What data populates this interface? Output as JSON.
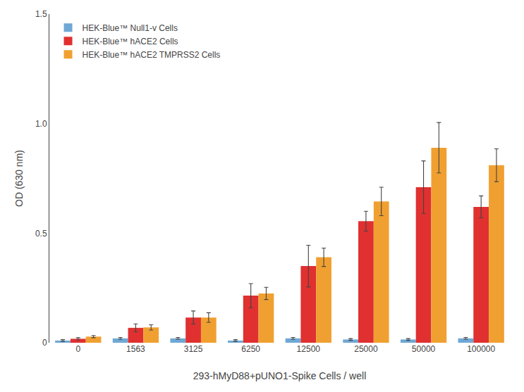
{
  "chart_data": {
    "type": "bar",
    "xlabel": "293-hMyD88+pUNO1-Spike Cells / well",
    "ylabel": "OD (630 nm)",
    "categories": [
      "0",
      "1563",
      "3125",
      "6250",
      "12500",
      "25000",
      "50000",
      "100000"
    ],
    "series": [
      {
        "name": "HEK-Blue™ Null1-v Cells",
        "color": "#6FA8D5",
        "values": [
          0.01,
          0.02,
          0.02,
          0.01,
          0.02,
          0.015,
          0.015,
          0.02
        ],
        "error": [
          0.004,
          0.004,
          0.004,
          0.004,
          0.004,
          0.004,
          0.004,
          0.004
        ]
      },
      {
        "name": "HEK-Blue™ hACE2 Cells",
        "color": "#E03030",
        "values": [
          0.018,
          0.068,
          0.115,
          0.215,
          0.35,
          0.555,
          0.71,
          0.62
        ],
        "error": [
          0.005,
          0.018,
          0.03,
          0.055,
          0.095,
          0.045,
          0.12,
          0.05
        ]
      },
      {
        "name": "HEK-Blue™ hACE2 TMPRSS2 Cells",
        "color": "#F0A030",
        "values": [
          0.028,
          0.07,
          0.115,
          0.225,
          0.39,
          0.645,
          0.89,
          0.81
        ],
        "error": [
          0.005,
          0.012,
          0.022,
          0.028,
          0.042,
          0.065,
          0.115,
          0.075
        ]
      }
    ],
    "ylim": [
      0,
      1.5
    ],
    "yticks": [
      0,
      0.5,
      {
        "value": 1.0,
        "label": "1.0"
      },
      1.5
    ],
    "grid": false,
    "legend": "upper left"
  }
}
